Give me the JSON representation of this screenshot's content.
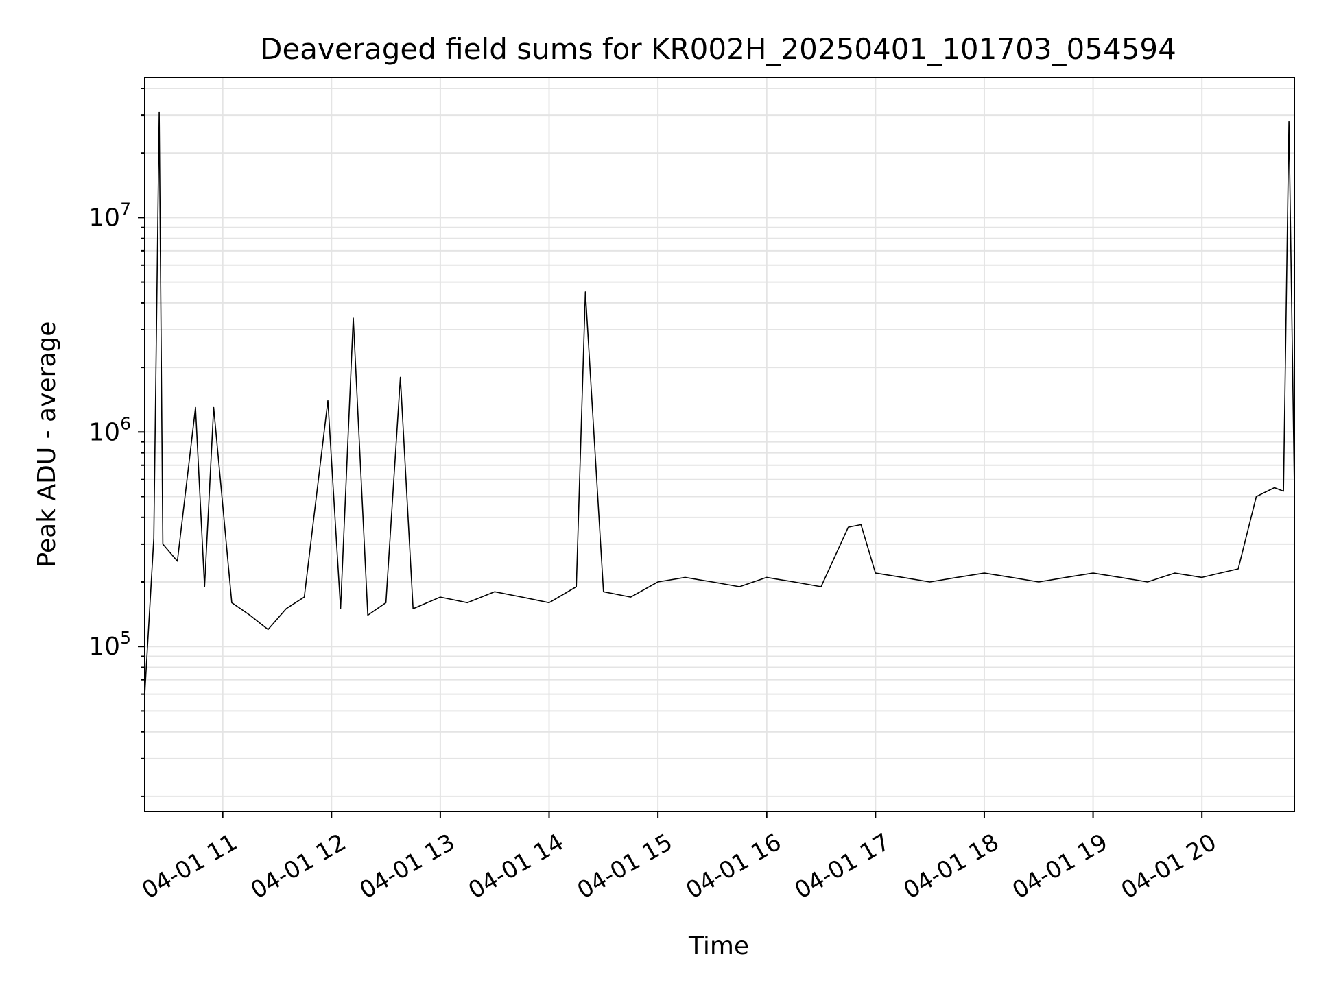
{
  "chart_data": {
    "type": "line",
    "title": "Deaveraged field sums for KR002H_20250401_101703_054594",
    "xlabel": "Time",
    "ylabel": "Peak ADU - average",
    "yscale": "log",
    "ylim": [
      17000,
      45000000
    ],
    "xlim": [
      "04-01 10:17",
      "04-01 20:51"
    ],
    "grid": true,
    "line_color": "#000000",
    "x_ticks": [
      "04-01 11",
      "04-01 12",
      "04-01 13",
      "04-01 14",
      "04-01 15",
      "04-01 16",
      "04-01 17",
      "04-01 18",
      "04-01 19",
      "04-01 20"
    ],
    "y_ticks": [
      {
        "base": "10",
        "exp": "5",
        "value": 100000
      },
      {
        "base": "10",
        "exp": "6",
        "value": 1000000
      },
      {
        "base": "10",
        "exp": "7",
        "value": 10000000
      }
    ],
    "series": [
      {
        "x": [
          "04-01 10:17",
          "04-01 10:22",
          "04-01 10:25",
          "04-01 10:27",
          "04-01 10:35",
          "04-01 10:45",
          "04-01 10:50",
          "04-01 10:55",
          "04-01 11:05",
          "04-01 11:15",
          "04-01 11:25",
          "04-01 11:35",
          "04-01 11:45",
          "04-01 11:58",
          "04-01 12:05",
          "04-01 12:12",
          "04-01 12:20",
          "04-01 12:30",
          "04-01 12:38",
          "04-01 12:45",
          "04-01 13:00",
          "04-01 13:15",
          "04-01 13:30",
          "04-01 13:45",
          "04-01 14:00",
          "04-01 14:15",
          "04-01 14:20",
          "04-01 14:30",
          "04-01 14:45",
          "04-01 15:00",
          "04-01 15:15",
          "04-01 15:30",
          "04-01 15:45",
          "04-01 16:00",
          "04-01 16:15",
          "04-01 16:30",
          "04-01 16:45",
          "04-01 16:52",
          "04-01 17:00",
          "04-01 17:15",
          "04-01 17:30",
          "04-01 17:45",
          "04-01 18:00",
          "04-01 18:15",
          "04-01 18:30",
          "04-01 18:45",
          "04-01 19:00",
          "04-01 19:15",
          "04-01 19:30",
          "04-01 19:45",
          "04-01 20:00",
          "04-01 20:10",
          "04-01 20:20",
          "04-01 20:30",
          "04-01 20:40",
          "04-01 20:45",
          "04-01 20:48",
          "04-01 20:51"
        ],
        "y": [
          60000,
          320000,
          31000000,
          300000,
          250000,
          1300000,
          190000,
          1300000,
          160000,
          140000,
          120000,
          150000,
          170000,
          1400000,
          150000,
          3400000,
          140000,
          160000,
          1800000,
          150000,
          170000,
          160000,
          180000,
          170000,
          160000,
          190000,
          4500000,
          180000,
          170000,
          200000,
          210000,
          200000,
          190000,
          210000,
          200000,
          190000,
          360000,
          370000,
          220000,
          210000,
          200000,
          210000,
          220000,
          210000,
          200000,
          210000,
          220000,
          210000,
          200000,
          220000,
          210000,
          220000,
          230000,
          500000,
          550000,
          530000,
          28000000,
          550000
        ]
      }
    ]
  }
}
